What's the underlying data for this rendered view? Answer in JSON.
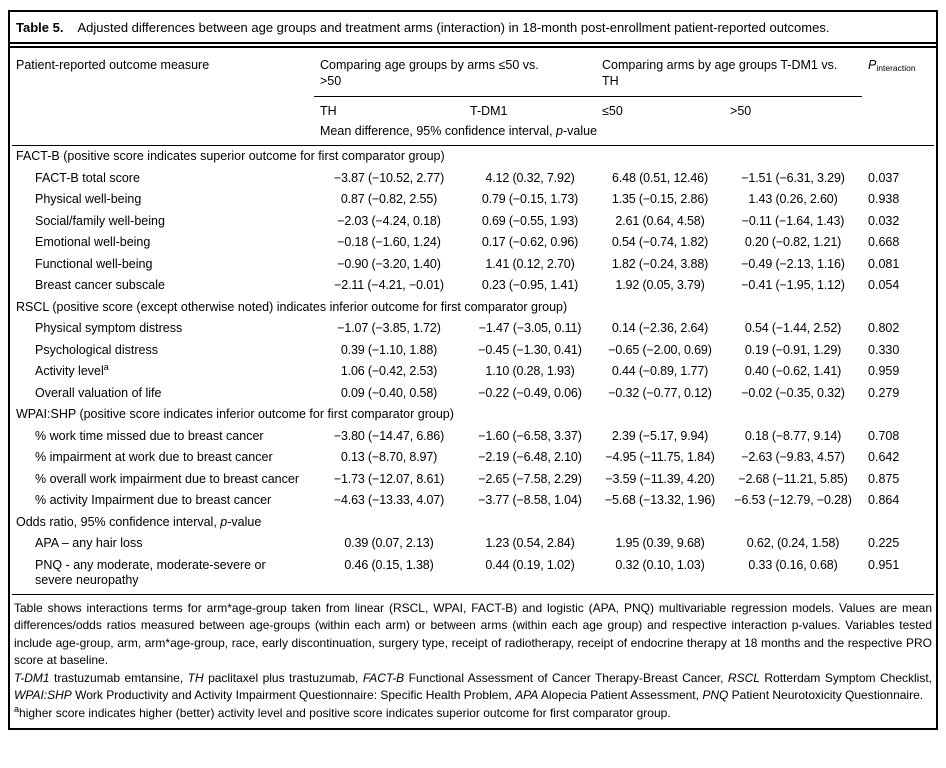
{
  "table": {
    "title_label": "Table 5.",
    "title_text": "Adjusted differences between age groups and treatment arms (interaction) in 18-month post-enrollment patient-reported outcomes."
  },
  "header": {
    "col1": "Patient-reported outcome measure",
    "group1": "Comparing age groups by arms ≤50 vs. >50",
    "group2": "Comparing arms by age groups T-DM1 vs. TH",
    "p_symbol": "P",
    "p_subscript": "interaction",
    "subcols": [
      "TH",
      "T-DM1",
      "≤50",
      ">50"
    ],
    "measure_note": [
      {
        "text": "Mean difference, 95% confidence interval, "
      },
      {
        "text": "p",
        "italic": true
      },
      {
        "text": "-value"
      }
    ]
  },
  "sections": [
    {
      "header": [
        {
          "text": "FACT-B (positive score indicates superior outcome for first comparator group)"
        }
      ],
      "rows": [
        {
          "label": [
            {
              "text": "FACT-B total score"
            }
          ],
          "values": [
            "−3.87 (−10.52, 2.77)",
            "4.12 (0.32, 7.92)",
            "6.48 (0.51, 12.46)",
            "−1.51 (−6.31, 3.29)",
            "0.037"
          ]
        },
        {
          "label": [
            {
              "text": "Physical well-being"
            }
          ],
          "values": [
            "0.87 (−0.82, 2.55)",
            "0.79 (−0.15, 1.73)",
            "1.35 (−0.15, 2.86)",
            "1.43 (0.26, 2.60)",
            "0.938"
          ]
        },
        {
          "label": [
            {
              "text": "Social/family well-being"
            }
          ],
          "values": [
            "−2.03 (−4.24, 0.18)",
            "0.69 (−0.55, 1.93)",
            "2.61 (0.64, 4.58)",
            "−0.11 (−1.64, 1.43)",
            "0.032"
          ]
        },
        {
          "label": [
            {
              "text": "Emotional well-being"
            }
          ],
          "values": [
            "−0.18 (−1.60, 1.24)",
            "0.17 (−0.62, 0.96)",
            "0.54 (−0.74, 1.82)",
            "0.20 (−0.82, 1.21)",
            "0.668"
          ]
        },
        {
          "label": [
            {
              "text": "Functional well-being"
            }
          ],
          "values": [
            "−0.90 (−3.20, 1.40)",
            "1.41 (0.12, 2.70)",
            "1.82 (−0.24, 3.88)",
            "−0.49 (−2.13, 1.16)",
            "0.081"
          ]
        },
        {
          "label": [
            {
              "text": "Breast cancer subscale"
            }
          ],
          "values": [
            "−2.11 (−4.21, −0.01)",
            "0.23 (−0.95, 1.41)",
            "1.92 (0.05, 3.79)",
            "−0.41 (−1.95, 1.12)",
            "0.054"
          ]
        }
      ]
    },
    {
      "header": [
        {
          "text": "RSCL (positive score (except otherwise noted) indicates inferior outcome for first comparator group)"
        }
      ],
      "rows": [
        {
          "label": [
            {
              "text": "Physical symptom distress"
            }
          ],
          "values": [
            "−1.07 (−3.85, 1.72)",
            "−1.47 (−3.05, 0.11)",
            "0.14 (−2.36, 2.64)",
            "0.54 (−1.44, 2.52)",
            "0.802"
          ]
        },
        {
          "label": [
            {
              "text": "Psychological distress"
            }
          ],
          "values": [
            "0.39 (−1.10, 1.88)",
            "−0.45 (−1.30, 0.41)",
            "−0.65 (−2.00, 0.69)",
            "0.19 (−0.91, 1.29)",
            "0.330"
          ]
        },
        {
          "label": [
            {
              "text": "Activity level"
            },
            {
              "text": "a",
              "sup": true
            }
          ],
          "values": [
            "1.06 (−0.42, 2.53)",
            "1.10 (0.28, 1.93)",
            "0.44 (−0.89, 1.77)",
            "0.40 (−0.62, 1.41)",
            "0.959"
          ]
        },
        {
          "label": [
            {
              "text": "Overall valuation of life"
            }
          ],
          "values": [
            "0.09 (−0.40, 0.58)",
            "−0.22 (−0.49, 0.06)",
            "−0.32 (−0.77, 0.12)",
            "−0.02 (−0.35, 0.32)",
            "0.279"
          ]
        }
      ]
    },
    {
      "header": [
        {
          "text": "WPAI:SHP (positive score indicates inferior outcome for first comparator group)"
        }
      ],
      "rows": [
        {
          "label": [
            {
              "text": "% work time missed due to breast cancer"
            }
          ],
          "values": [
            "−3.80 (−14.47, 6.86)",
            "−1.60 (−6.58, 3.37)",
            "2.39 (−5.17, 9.94)",
            "0.18 (−8.77, 9.14)",
            "0.708"
          ]
        },
        {
          "label": [
            {
              "text": "% impairment at work due to breast cancer"
            }
          ],
          "values": [
            "0.13 (−8.70, 8.97)",
            "−2.19 (−6.48, 2.10)",
            "−4.95 (−11.75, 1.84)",
            "−2.63 (−9.83, 4.57)",
            "0.642"
          ]
        },
        {
          "label": [
            {
              "text": "% overall work impairment due to breast cancer"
            }
          ],
          "values": [
            "−1.73 (−12.07, 8.61)",
            "−2.65 (−7.58, 2.29)",
            "−3.59 (−11.39, 4.20)",
            "−2.68 (−11.21, 5.85)",
            "0.875"
          ]
        },
        {
          "label": [
            {
              "text": "% activity Impairment due to breast cancer"
            }
          ],
          "values": [
            "−4.63 (−13.33, 4.07)",
            "−3.77 (−8.58, 1.04)",
            "−5.68 (−13.32, 1.96)",
            "−6.53 (−12.79, −0.28)",
            "0.864"
          ]
        }
      ]
    },
    {
      "header": [
        {
          "text": "Odds ratio, 95% confidence interval, "
        },
        {
          "text": "p",
          "italic": true
        },
        {
          "text": "-value"
        }
      ],
      "rows": [
        {
          "label": [
            {
              "text": "APA – any hair loss"
            }
          ],
          "values": [
            "0.39 (0.07, 2.13)",
            "1.23 (0.54, 2.84)",
            "1.95 (0.39, 9.68)",
            "0.62, (0.24, 1.58)",
            "0.225"
          ]
        },
        {
          "label": [
            {
              "text": "PNQ - any moderate, moderate-severe or severe neuropathy"
            }
          ],
          "values": [
            "0.46 (0.15, 1.38)",
            "0.44 (0.19, 1.02)",
            "0.32 (0.10, 1.03)",
            "0.33 (0.16, 0.68)",
            "0.951"
          ]
        }
      ]
    }
  ],
  "footnotes": [
    [
      {
        "text": "Table shows interactions terms for arm*age-group taken from linear (RSCL, WPAI, FACT-B) and logistic (APA, PNQ) multivariable regression models. Values are mean differences/odds ratios measured between age-groups (within each arm) or between arms (within each age group) and respective interaction p-values. Variables tested include age-group, arm, arm*age-group, race, early discontinuation, surgery type, receipt of radiotherapy, receipt of endocrine therapy at 18 months and the respective PRO score at baseline."
      }
    ],
    [
      {
        "text": "T-DM1",
        "italic": true
      },
      {
        "text": " trastuzumab emtansine, "
      },
      {
        "text": "TH",
        "italic": true
      },
      {
        "text": " paclitaxel plus trastuzumab, "
      },
      {
        "text": "FACT-B",
        "italic": true
      },
      {
        "text": " Functional Assessment of Cancer Therapy-Breast Cancer, "
      },
      {
        "text": "RSCL",
        "italic": true
      },
      {
        "text": " Rotterdam Symptom Checklist, "
      },
      {
        "text": "WPAI:SHP",
        "italic": true
      },
      {
        "text": " Work Productivity and Activity Impairment Questionnaire: Specific Health Problem, "
      },
      {
        "text": "APA",
        "italic": true
      },
      {
        "text": " Alopecia Patient Assessment, "
      },
      {
        "text": "PNQ",
        "italic": true
      },
      {
        "text": " Patient Neurotoxicity Questionnaire."
      }
    ],
    [
      {
        "text": "a",
        "sup": true
      },
      {
        "text": "higher score indicates higher (better) activity level and positive score indicates superior outcome for first comparator group."
      }
    ]
  ]
}
